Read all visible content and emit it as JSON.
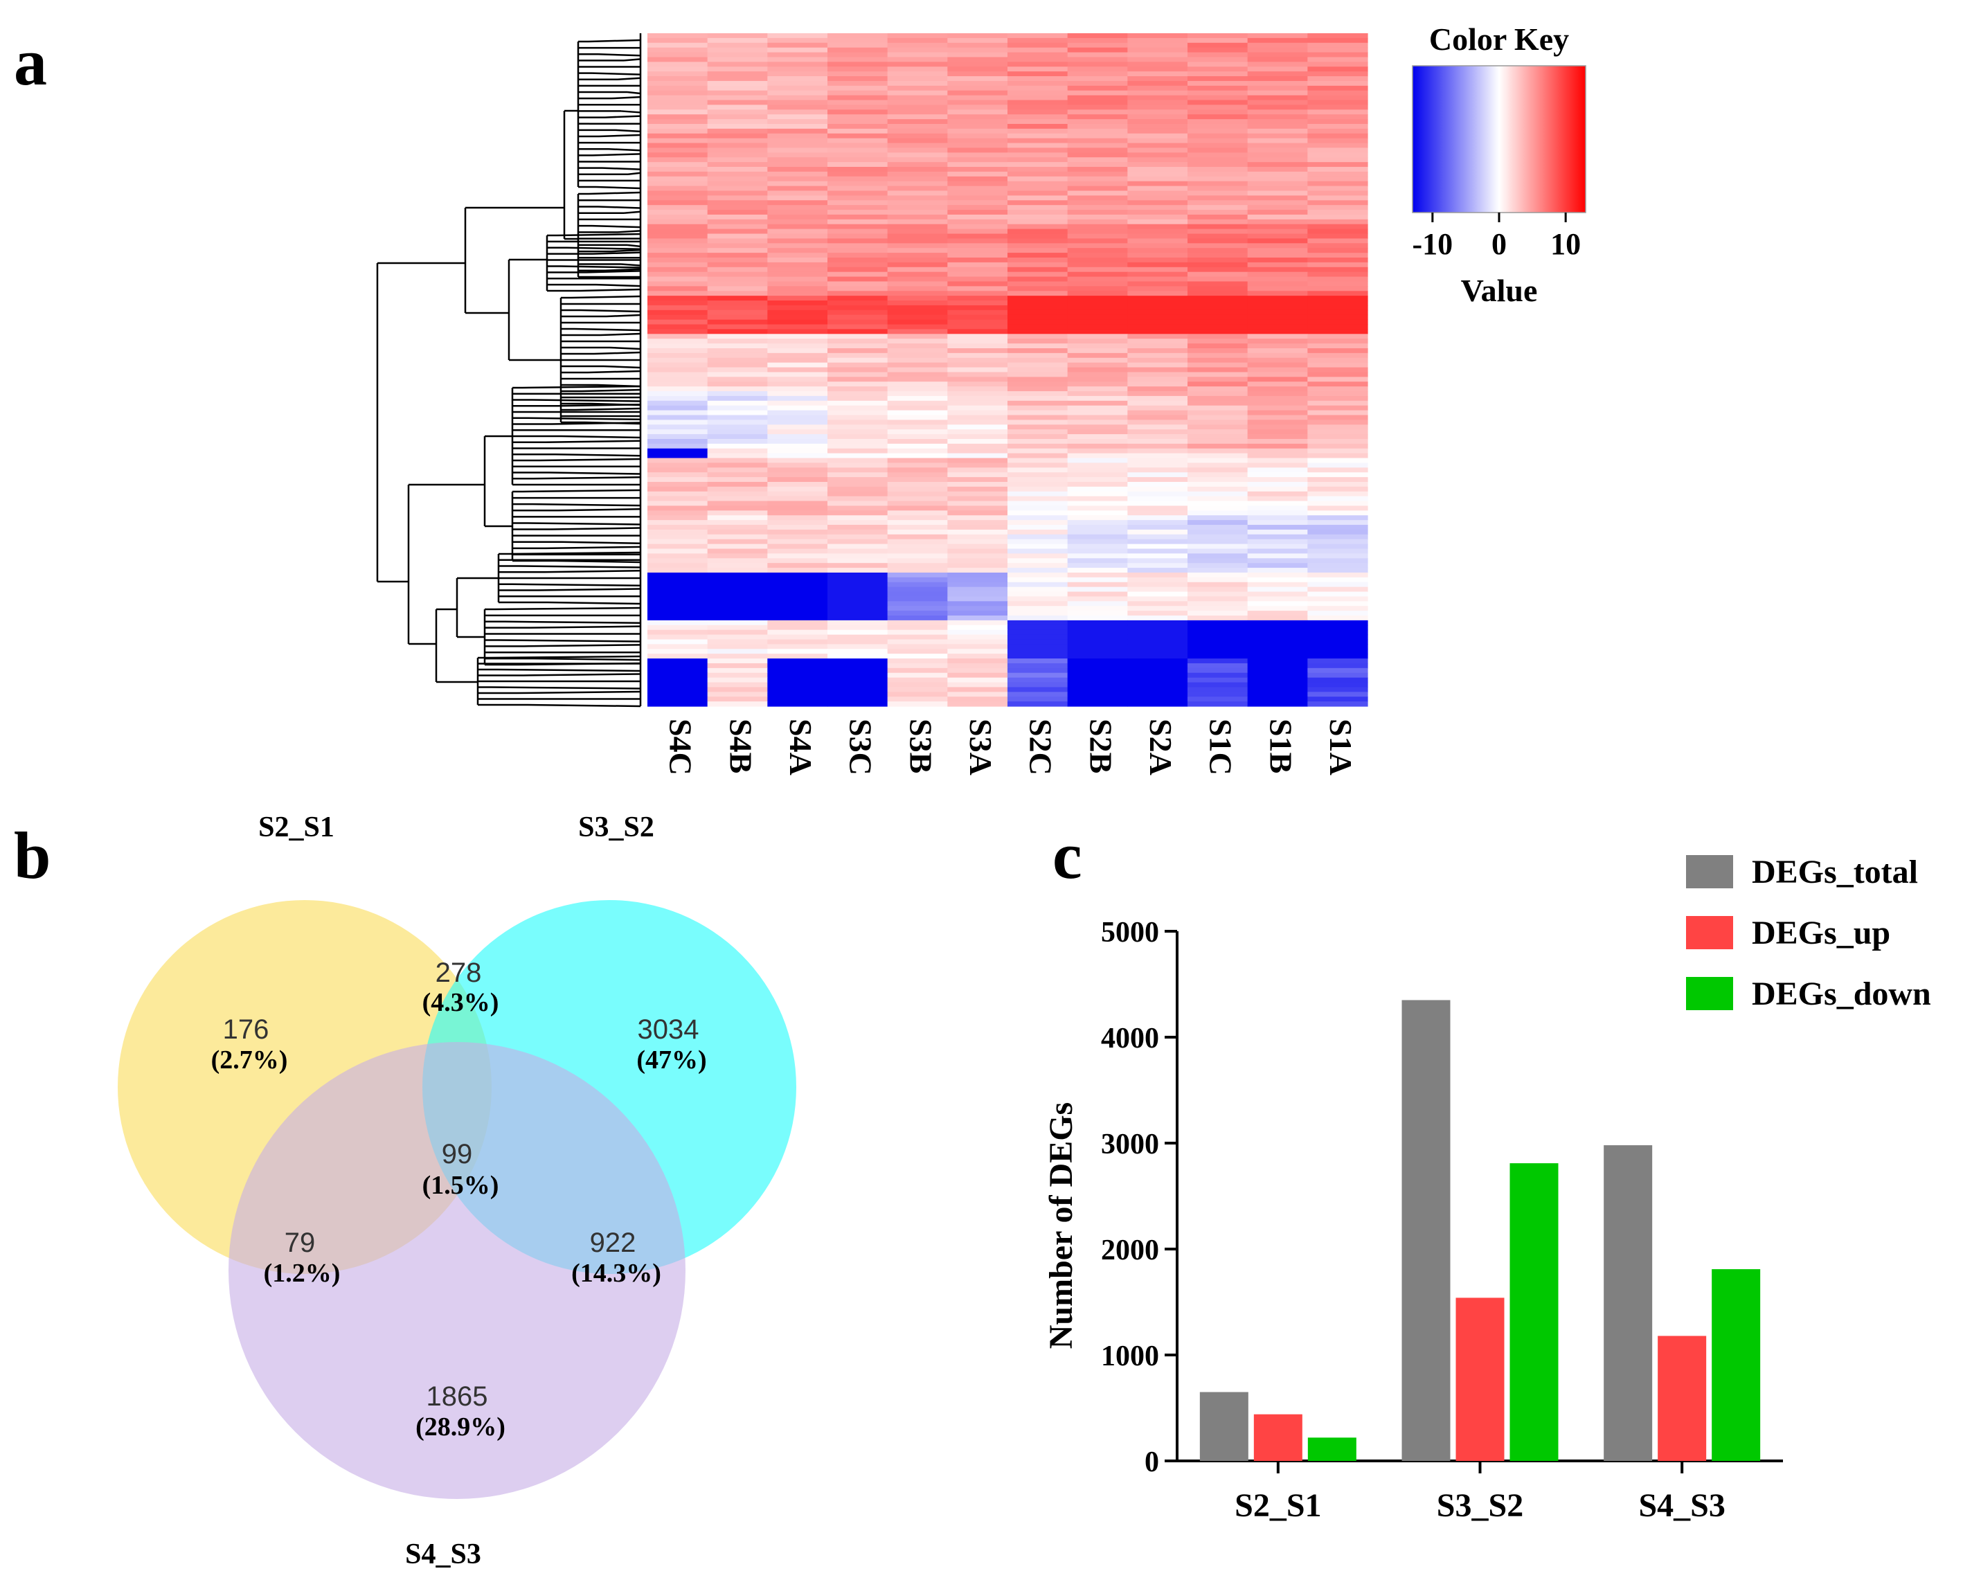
{
  "colors": {
    "total": "#808080",
    "up": "#ff4444",
    "down": "#00c800",
    "venn_a": "#fbe37a",
    "venn_b": "#20fbfb",
    "venn_c": "#c6aee6",
    "heat_low": "#0000ee",
    "heat_mid": "#ffffff",
    "heat_high": "#ff0000"
  },
  "chart_data": [
    {
      "panel": "a",
      "type": "heatmap",
      "title": "",
      "columns": [
        "S4C",
        "S4B",
        "S4A",
        "S3C",
        "S3B",
        "S3A",
        "S2C",
        "S2B",
        "S2A",
        "S1C",
        "S1B",
        "S1A"
      ],
      "color_key": {
        "title": "Color Key",
        "label": "Value",
        "ticks": [
          "-10",
          "0",
          "10"
        ],
        "range": [
          -13,
          13
        ]
      },
      "row_blocks": [
        {
          "rows": 20,
          "values": [
            4,
            4,
            4,
            5,
            5,
            5,
            6,
            6,
            6,
            6,
            6,
            6
          ]
        },
        {
          "rows": 20,
          "values": [
            5,
            5,
            5,
            5,
            5,
            5,
            5,
            5,
            5,
            5,
            5,
            5
          ]
        },
        {
          "rows": 15,
          "values": [
            5,
            5,
            5,
            6,
            6,
            6,
            7,
            7,
            7,
            7,
            7,
            7
          ]
        },
        {
          "rows": 8,
          "values": [
            9,
            9,
            9,
            9,
            9,
            9,
            11,
            11,
            11,
            11,
            11,
            11
          ]
        },
        {
          "rows": 12,
          "values": [
            2,
            2,
            2,
            3,
            3,
            3,
            4,
            4,
            4,
            5,
            5,
            5
          ]
        },
        {
          "rows": 12,
          "values": [
            -2,
            -1,
            0,
            1,
            1,
            1,
            3,
            3,
            3,
            4,
            4,
            4
          ]
        },
        {
          "rows": 2,
          "values": [
            -13,
            1,
            1,
            1,
            1,
            1,
            2,
            2,
            2,
            2,
            2,
            2
          ]
        },
        {
          "rows": 12,
          "values": [
            3,
            3,
            3,
            3,
            3,
            3,
            1,
            1,
            1,
            1,
            1,
            1
          ]
        },
        {
          "rows": 12,
          "values": [
            2,
            2,
            2,
            2,
            2,
            2,
            0,
            -1,
            -1,
            -2,
            -2,
            -2
          ]
        },
        {
          "rows": 10,
          "values": [
            -13,
            -13,
            -13,
            -12,
            -6,
            -4,
            0,
            1,
            1,
            1,
            1,
            1
          ]
        },
        {
          "rows": 8,
          "values": [
            1,
            1,
            1,
            1,
            1,
            1,
            -11,
            -12,
            -12,
            -13,
            -13,
            -13
          ]
        },
        {
          "rows": 10,
          "values": [
            -13,
            2,
            -13,
            -13,
            2,
            2,
            -8,
            -13,
            -13,
            -9,
            -13,
            -9
          ]
        }
      ]
    },
    {
      "panel": "b",
      "type": "venn",
      "sets": [
        "S2_S1",
        "S3_S2",
        "S4_S3"
      ],
      "regions": [
        {
          "sets": [
            "S2_S1"
          ],
          "count": "176",
          "percent": "(2.7%)"
        },
        {
          "sets": [
            "S3_S2"
          ],
          "count": "3034",
          "percent": "(47%)"
        },
        {
          "sets": [
            "S4_S3"
          ],
          "count": "1865",
          "percent": "(28.9%)"
        },
        {
          "sets": [
            "S2_S1",
            "S3_S2"
          ],
          "count": "278",
          "percent": "(4.3%)"
        },
        {
          "sets": [
            "S2_S1",
            "S4_S3"
          ],
          "count": "79",
          "percent": "(1.2%)"
        },
        {
          "sets": [
            "S3_S2",
            "S4_S3"
          ],
          "count": "922",
          "percent": "(14.3%)"
        },
        {
          "sets": [
            "S2_S1",
            "S3_S2",
            "S4_S3"
          ],
          "count": "99",
          "percent": "(1.5%)"
        }
      ]
    },
    {
      "panel": "c",
      "type": "bar",
      "title": "",
      "xlabel": "",
      "ylabel": "Number of DEGs",
      "categories": [
        "S2_S1",
        "S3_S2",
        "S4_S3"
      ],
      "series": [
        {
          "name": "DEGs_total",
          "values": [
            650,
            4350,
            2980
          ]
        },
        {
          "name": "DEGs_up",
          "values": [
            440,
            1540,
            1180
          ]
        },
        {
          "name": "DEGs_down",
          "values": [
            220,
            2810,
            1810
          ]
        }
      ],
      "ylim": [
        0,
        5000
      ],
      "yticks": [
        "0",
        "1000",
        "2000",
        "3000",
        "4000",
        "5000"
      ],
      "legend": "top-right"
    }
  ],
  "panels": {
    "a": "a",
    "b": "b",
    "c": "c"
  }
}
